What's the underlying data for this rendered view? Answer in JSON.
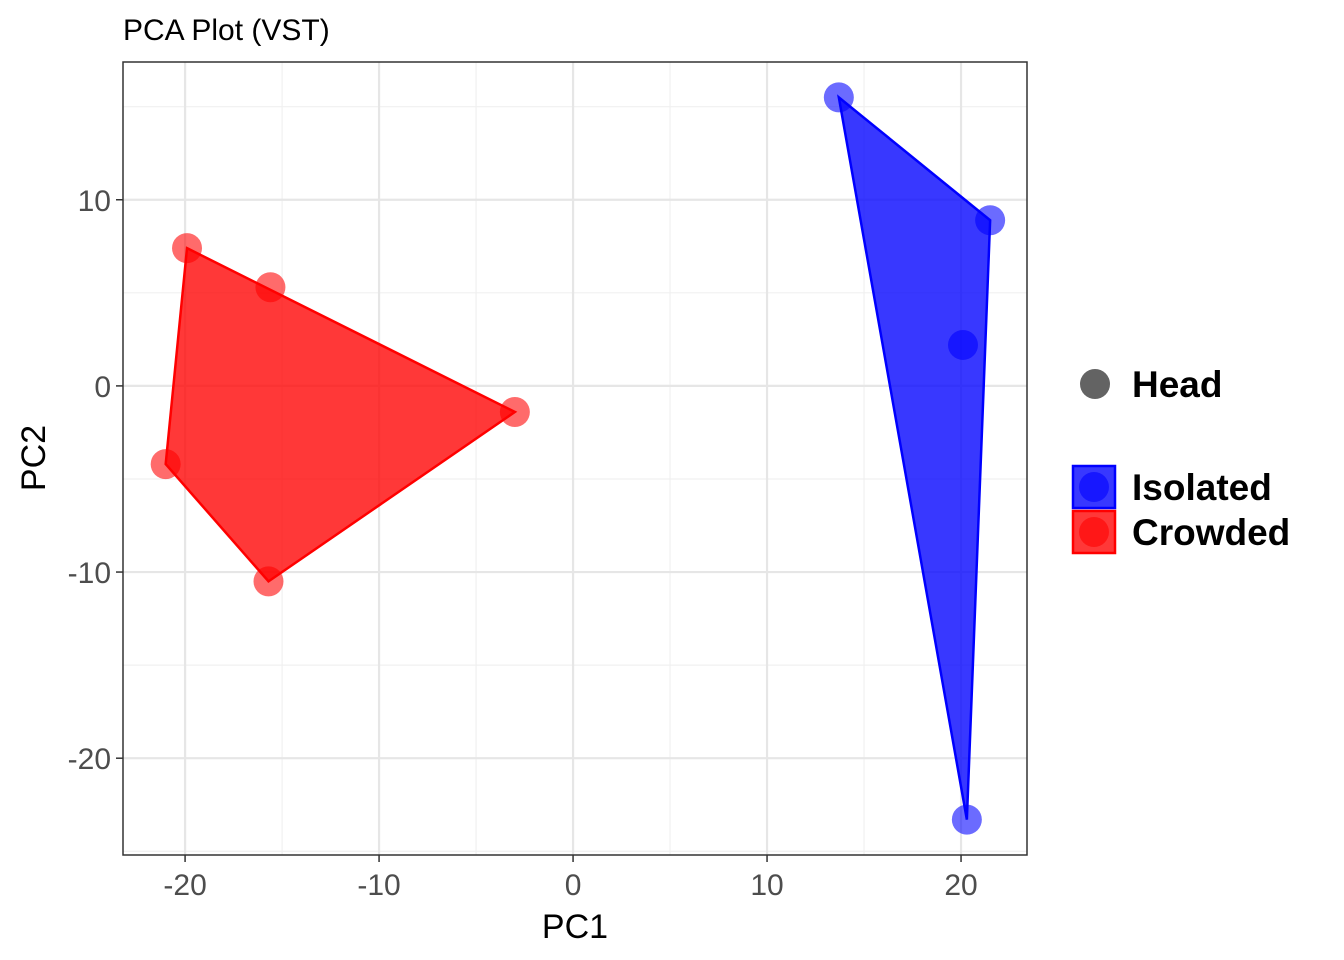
{
  "chart_data": {
    "type": "scatter",
    "title": "PCA Plot (VST)",
    "xlabel": "PC1",
    "ylabel": "PC2",
    "xlim": [
      -23.2,
      23.4
    ],
    "ylim": [
      -25.2,
      17.4
    ],
    "x_ticks": [
      -20,
      -10,
      0,
      10,
      20
    ],
    "y_ticks": [
      -20,
      -10,
      0,
      10
    ],
    "x_tick_labels": [
      "-20",
      "-10",
      "0",
      "10",
      "20"
    ],
    "y_tick_labels": [
      "-20",
      "-10",
      "0",
      "10"
    ],
    "grid": true,
    "legend_position": "right",
    "shape_legend": {
      "label": "Head",
      "color": "#636363"
    },
    "series": [
      {
        "name": "Isolated",
        "color": "#0000ff",
        "points": [
          {
            "x": 13.7,
            "y": 15.5
          },
          {
            "x": 21.5,
            "y": 8.9
          },
          {
            "x": 20.1,
            "y": 2.2
          },
          {
            "x": 20.3,
            "y": -23.3
          }
        ],
        "hull": [
          [
            13.7,
            15.5
          ],
          [
            21.5,
            8.9
          ],
          [
            20.3,
            -23.3
          ]
        ]
      },
      {
        "name": "Crowded",
        "color": "#ff0000",
        "points": [
          {
            "x": -19.9,
            "y": 7.4
          },
          {
            "x": -15.6,
            "y": 5.3
          },
          {
            "x": -3.0,
            "y": -1.4
          },
          {
            "x": -21.0,
            "y": -4.2
          },
          {
            "x": -15.7,
            "y": -10.5
          }
        ],
        "hull": [
          [
            -19.9,
            7.4
          ],
          [
            -3.0,
            -1.4
          ],
          [
            -15.7,
            -10.5
          ],
          [
            -21.0,
            -4.2
          ]
        ]
      }
    ]
  }
}
